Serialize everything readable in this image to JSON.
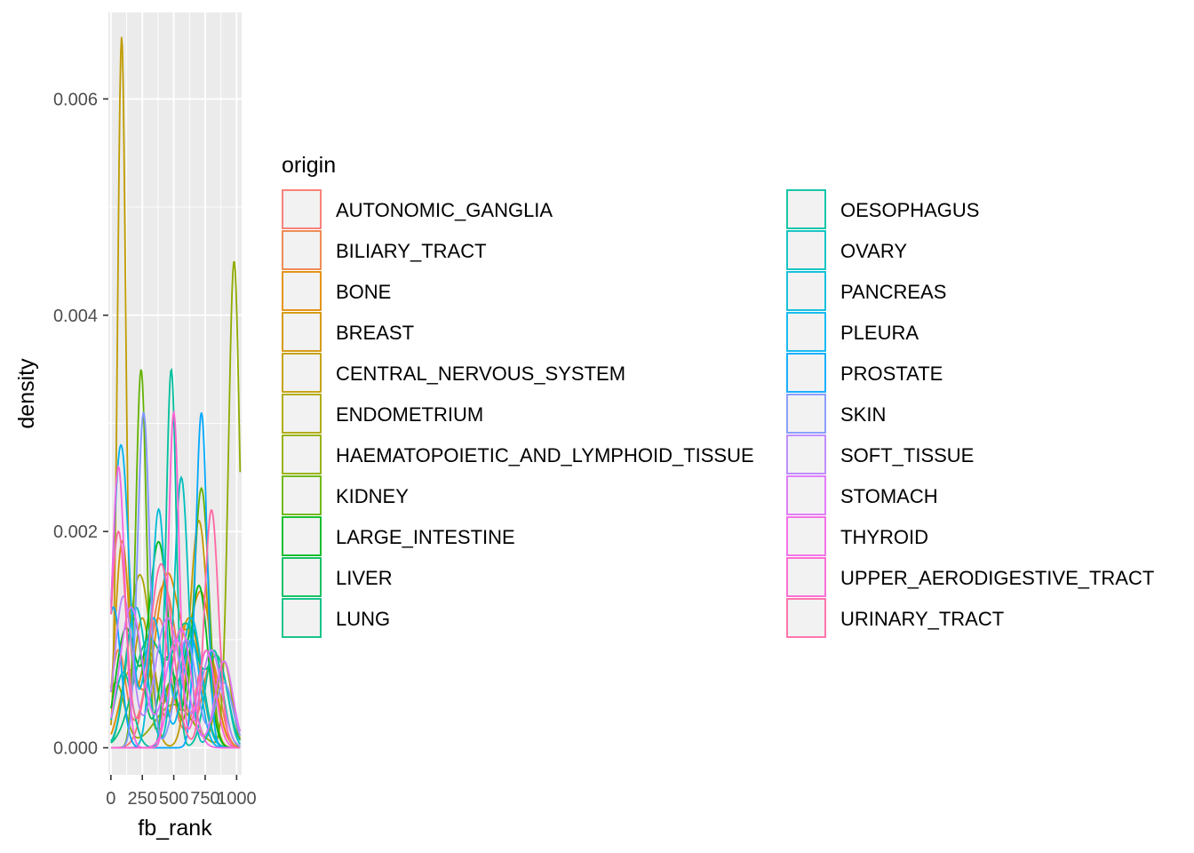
{
  "chart_data": {
    "type": "density",
    "xlabel": "fb_rank",
    "ylabel": "density",
    "xlim": [
      -20,
      1040
    ],
    "ylim": [
      -0.00025,
      0.0068
    ],
    "x_ticks": [
      0,
      250,
      500,
      750,
      1000
    ],
    "x_tick_labels": [
      "0",
      "250",
      "500",
      "750",
      "1000"
    ],
    "y_ticks": [
      0,
      0.002,
      0.004,
      0.006
    ],
    "y_tick_labels": [
      "0.000",
      "0.002",
      "0.004",
      "0.006"
    ],
    "panel_background": "#ebebeb",
    "grid": true,
    "legend": {
      "title": "origin",
      "placement": "right",
      "columns": 2
    },
    "series": [
      {
        "name": "AUTONOMIC_GANGLIA",
        "color": "#F8766D",
        "peaks": [
          [
            380,
            0.0012,
            90
          ],
          [
            760,
            0.0009,
            80
          ]
        ]
      },
      {
        "name": "BILIARY_TRACT",
        "color": "#EE8043",
        "peaks": [
          [
            60,
            0.0009,
            60
          ],
          [
            420,
            0.0015,
            110
          ],
          [
            800,
            0.0008,
            70
          ]
        ]
      },
      {
        "name": "BONE",
        "color": "#E38900",
        "peaks": [
          [
            150,
            0.0007,
            80
          ],
          [
            450,
            0.0016,
            100
          ],
          [
            720,
            0.0014,
            90
          ]
        ]
      },
      {
        "name": "BREAST",
        "color": "#D39200",
        "peaks": [
          [
            90,
            0.0019,
            55
          ],
          [
            300,
            0.0009,
            70
          ],
          [
            620,
            0.0012,
            90
          ]
        ]
      },
      {
        "name": "CENTRAL_NERVOUS_SYSTEM",
        "color": "#C09B00",
        "peaks": [
          [
            85,
            0.0065,
            32
          ],
          [
            250,
            0.0012,
            70
          ],
          [
            700,
            0.0021,
            70
          ]
        ]
      },
      {
        "name": "ENDOMETRIUM",
        "color": "#A9A400",
        "peaks": [
          [
            230,
            0.0016,
            90
          ],
          [
            560,
            0.0011,
            80
          ],
          [
            900,
            0.0008,
            60
          ]
        ]
      },
      {
        "name": "HAEMATOPOIETIC_AND_LYMPHOID_TISSUE",
        "color": "#8EAB00",
        "peaks": [
          [
            40,
            0.0006,
            70
          ],
          [
            500,
            0.0004,
            150
          ],
          [
            980,
            0.0045,
            45
          ]
        ]
      },
      {
        "name": "KIDNEY",
        "color": "#64B200",
        "peaks": [
          [
            240,
            0.0035,
            42
          ],
          [
            470,
            0.0006,
            60
          ],
          [
            720,
            0.0024,
            60
          ]
        ]
      },
      {
        "name": "LARGE_INTESTINE",
        "color": "#00B81B",
        "peaks": [
          [
            120,
            0.0011,
            80
          ],
          [
            380,
            0.0019,
            80
          ],
          [
            700,
            0.0015,
            70
          ]
        ]
      },
      {
        "name": "LIVER",
        "color": "#00BC56",
        "peaks": [
          [
            180,
            0.0012,
            70
          ],
          [
            440,
            0.0008,
            60
          ],
          [
            650,
            0.0011,
            80
          ]
        ]
      },
      {
        "name": "LUNG",
        "color": "#00BF7D",
        "peaks": [
          [
            300,
            0.001,
            120
          ],
          [
            600,
            0.0011,
            100
          ],
          [
            850,
            0.0008,
            80
          ]
        ]
      },
      {
        "name": "OESOPHAGUS",
        "color": "#00C09F",
        "peaks": [
          [
            100,
            0.0007,
            70
          ],
          [
            480,
            0.0035,
            40
          ],
          [
            820,
            0.0009,
            70
          ]
        ]
      },
      {
        "name": "OVARY",
        "color": "#00BFBD",
        "peaks": [
          [
            200,
            0.0013,
            80
          ],
          [
            560,
            0.0025,
            55
          ],
          [
            880,
            0.0007,
            60
          ]
        ]
      },
      {
        "name": "PANCREAS",
        "color": "#00BBD8",
        "peaks": [
          [
            380,
            0.0022,
            55
          ],
          [
            640,
            0.0012,
            80
          ]
        ]
      },
      {
        "name": "PLEURA",
        "color": "#00B4EF",
        "peaks": [
          [
            80,
            0.0028,
            65
          ],
          [
            340,
            0.0012,
            70
          ],
          [
            640,
            0.001,
            70
          ]
        ]
      },
      {
        "name": "PROSTATE",
        "color": "#00A8FF",
        "peaks": [
          [
            20,
            0.0013,
            60
          ],
          [
            720,
            0.0031,
            45
          ]
        ]
      },
      {
        "name": "SKIN",
        "color": "#7F96FF",
        "peaks": [
          [
            260,
            0.0031,
            48
          ],
          [
            600,
            0.001,
            80
          ],
          [
            900,
            0.0006,
            70
          ]
        ]
      },
      {
        "name": "SOFT_TISSUE",
        "color": "#B983FF",
        "peaks": [
          [
            100,
            0.0014,
            70
          ],
          [
            450,
            0.0012,
            100
          ],
          [
            800,
            0.0009,
            80
          ]
        ]
      },
      {
        "name": "STOMACH",
        "color": "#DE71F9",
        "peaks": [
          [
            160,
            0.0013,
            90
          ],
          [
            520,
            0.001,
            90
          ],
          [
            900,
            0.0008,
            70
          ]
        ]
      },
      {
        "name": "THYROID",
        "color": "#F365E6",
        "peaks": [
          [
            60,
            0.0026,
            50
          ],
          [
            560,
            0.0011,
            80
          ]
        ]
      },
      {
        "name": "UPPER_AERODIGESTIVE_TRACT",
        "color": "#FD61D1",
        "peaks": [
          [
            500,
            0.0031,
            42
          ],
          [
            760,
            0.0009,
            70
          ]
        ]
      },
      {
        "name": "URINARY_TRACT",
        "color": "#FF67A4",
        "peaks": [
          [
            60,
            0.002,
            60
          ],
          [
            400,
            0.0017,
            90
          ],
          [
            800,
            0.0022,
            55
          ]
        ]
      }
    ]
  }
}
